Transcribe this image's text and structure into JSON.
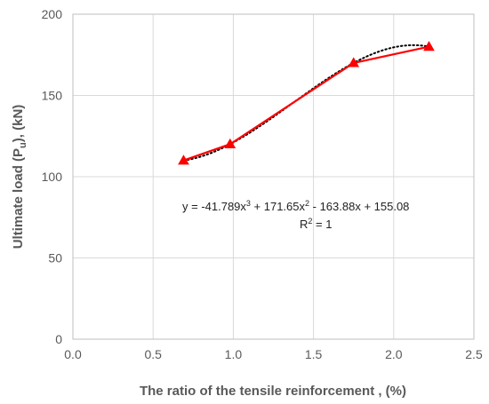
{
  "chart_data": {
    "type": "scatter",
    "title": "",
    "xlabel": "The ratio of the tensile reinforcement , (%)",
    "ylabel": {
      "prefix": "Ultimate load (P",
      "subscript": "u",
      "suffix": "), (kN)"
    },
    "xlim": [
      0.0,
      2.5
    ],
    "ylim": [
      0,
      200
    ],
    "xticks": [
      "0.0",
      "0.5",
      "1.0",
      "1.5",
      "2.0",
      "2.5"
    ],
    "yticks": [
      "0",
      "50",
      "100",
      "150",
      "200"
    ],
    "grid": true,
    "series": [
      {
        "x": [
          0.69,
          0.98,
          1.75,
          2.22
        ],
        "y": [
          110,
          120,
          170,
          180
        ],
        "color": "#ff0000",
        "marker": "triangle",
        "line": "solid"
      }
    ],
    "trendline": {
      "type": "polynomial",
      "order": 3,
      "color": "#000000",
      "style": "dotted",
      "coefficients": [
        -41.789,
        171.65,
        -163.88,
        155.08
      ]
    },
    "annotations": {
      "equation": {
        "t1": "y = -41.789x",
        "s1": "3",
        "t2": " + 171.65x",
        "s2": "2",
        "t3": " - 163.88x + 155.08"
      },
      "r_squared": {
        "t1": "R",
        "s1": "2",
        "t2": " = 1"
      }
    }
  }
}
